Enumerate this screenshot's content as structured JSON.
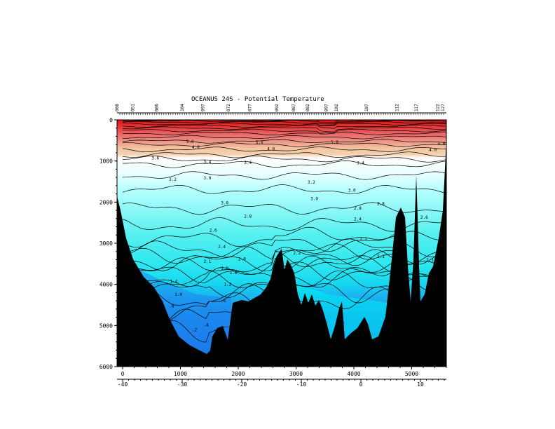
{
  "chart_data": {
    "type": "heatmap",
    "title": "OCEANUS 24S - Potential Temperature",
    "x_axis_distance": {
      "min": 0,
      "max": 5600,
      "ticks": [
        "0",
        "1000",
        "2000",
        "3000",
        "4000",
        "5000"
      ],
      "tick_values": [
        0,
        1000,
        2000,
        3000,
        4000,
        5000
      ]
    },
    "x_axis_longitude": {
      "ticks": [
        "-40",
        "-30",
        "-20",
        "-10",
        "0",
        "10"
      ],
      "tick_values": [
        -40,
        -30,
        -20,
        -10,
        0,
        10
      ],
      "min": -40,
      "max": 15
    },
    "y_axis_depth": {
      "min": 0,
      "max": 6000,
      "inverted": true,
      "ticks": [
        "0",
        "1000",
        "2000",
        "3000",
        "4000",
        "5000",
        "6000"
      ],
      "tick_values": [
        0,
        1000,
        2000,
        3000,
        4000,
        5000,
        6000
      ]
    },
    "station_labels": [
      "008",
      "051",
      "086",
      "104",
      "097",
      "072",
      "077",
      "092",
      "087",
      "082",
      "097",
      "102",
      "107",
      "112",
      "117",
      "122",
      "127"
    ],
    "station_positions": [
      0,
      270,
      680,
      1120,
      1470,
      1910,
      2280,
      2740,
      3030,
      3270,
      3590,
      3760,
      4280,
      4800,
      5130,
      5500,
      5590
    ],
    "contour_levels": [
      25.0,
      22.0,
      20.0,
      18.0,
      16.0,
      14.0,
      12.0,
      10.0,
      8.0,
      6.0,
      5.0,
      4.0,
      3.8,
      3.6,
      3.4,
      3.2,
      3.0,
      2.8,
      2.6,
      2.4,
      2.2,
      2.1,
      2.0,
      1.8,
      1.6,
      1.4,
      1.2,
      1.0,
      0.8,
      0.6,
      0.4,
      0.2
    ],
    "contour_labels": [
      {
        "text": "5.0",
        "x": 1100,
        "depth": 560
      },
      {
        "text": "5.0",
        "x": 2300,
        "depth": 580
      },
      {
        "text": "5.0",
        "x": 3600,
        "depth": 580
      },
      {
        "text": "5.0",
        "x": 5450,
        "depth": 610
      },
      {
        "text": "4.0",
        "x": 1200,
        "depth": 700
      },
      {
        "text": "4.0",
        "x": 2500,
        "depth": 740
      },
      {
        "text": "4.0",
        "x": 5300,
        "depth": 770
      },
      {
        "text": "3.6",
        "x": 500,
        "depth": 960
      },
      {
        "text": "3.4",
        "x": 1400,
        "depth": 1060
      },
      {
        "text": "3.4",
        "x": 2100,
        "depth": 1070
      },
      {
        "text": "3.4",
        "x": 4050,
        "depth": 1080
      },
      {
        "text": "3.2",
        "x": 800,
        "depth": 1480
      },
      {
        "text": "3.2",
        "x": 3200,
        "depth": 1550
      },
      {
        "text": "3.0",
        "x": 1400,
        "depth": 1450
      },
      {
        "text": "3.0",
        "x": 1700,
        "depth": 2050
      },
      {
        "text": "3.0",
        "x": 3250,
        "depth": 1950
      },
      {
        "text": "3.0",
        "x": 3900,
        "depth": 1750
      },
      {
        "text": "2.8",
        "x": 2100,
        "depth": 2380
      },
      {
        "text": "2.8",
        "x": 4000,
        "depth": 2180
      },
      {
        "text": "2.8",
        "x": 4400,
        "depth": 2070
      },
      {
        "text": "2.6",
        "x": 1500,
        "depth": 2720
      },
      {
        "text": "2.6",
        "x": 5150,
        "depth": 2400
      },
      {
        "text": "2.4",
        "x": 1650,
        "depth": 3120
      },
      {
        "text": "2.4",
        "x": 4000,
        "depth": 2450
      },
      {
        "text": "2.4",
        "x": 5500,
        "depth": 2770
      },
      {
        "text": "2.2",
        "x": 2950,
        "depth": 3270
      },
      {
        "text": "2.2",
        "x": 4100,
        "depth": 2930
      },
      {
        "text": "2.1",
        "x": 1400,
        "depth": 3480
      },
      {
        "text": "2.1",
        "x": 4400,
        "depth": 3360
      },
      {
        "text": "2.1",
        "x": 5250,
        "depth": 3440
      },
      {
        "text": "2.0",
        "x": 2000,
        "depth": 3420
      },
      {
        "text": "2.0",
        "x": 3700,
        "depth": 4970
      },
      {
        "text": "1.8",
        "x": 1700,
        "depth": 3650
      },
      {
        "text": "1.6",
        "x": 1850,
        "depth": 3750
      },
      {
        "text": "1.4",
        "x": 820,
        "depth": 3960
      },
      {
        "text": "1.2",
        "x": 1750,
        "depth": 4030
      },
      {
        "text": "1.0",
        "x": 900,
        "depth": 4280
      },
      {
        "text": ".8",
        "x": 800,
        "depth": 4560
      },
      {
        "text": ".6",
        "x": 1700,
        "depth": 4430
      },
      {
        "text": ".4",
        "x": 1400,
        "depth": 5020
      },
      {
        "text": ".2",
        "x": 1200,
        "depth": 5140
      }
    ]
  }
}
